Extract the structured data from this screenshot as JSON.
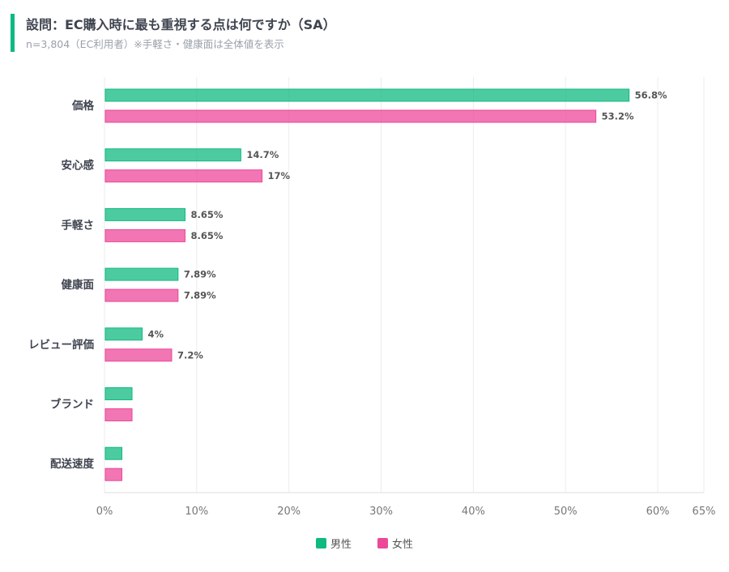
{
  "header": {
    "title": "設問：EC購入時に最も重視する点は何ですか（SA）",
    "subtitle": "n=3,804（EC利用者）※手軽さ・健康面は全体値を表示"
  },
  "chart_data": {
    "type": "bar",
    "orientation": "horizontal",
    "categories": [
      "価格",
      "安心感",
      "手軽さ",
      "健康面",
      "レビュー評価",
      "ブランド",
      "配送速度"
    ],
    "series": [
      {
        "name": "男性",
        "color": "#10b981",
        "values": [
          56.8,
          14.7,
          8.65,
          7.89,
          4,
          2.9,
          1.8
        ],
        "labels": [
          "56.8%",
          "14.7%",
          "8.65%",
          "7.89%",
          "4%",
          "",
          ""
        ]
      },
      {
        "name": "女性",
        "color": "#ec4899",
        "values": [
          53.2,
          17,
          8.65,
          7.89,
          7.2,
          2.9,
          1.8
        ],
        "labels": [
          "53.2%",
          "17%",
          "8.65%",
          "7.89%",
          "7.2%",
          "",
          ""
        ]
      }
    ],
    "xticks": [
      0,
      10,
      20,
      30,
      40,
      50,
      60,
      65
    ],
    "xtick_labels": [
      "0%",
      "10%",
      "20%",
      "30%",
      "40%",
      "50%",
      "60%",
      "65%"
    ],
    "xlim": [
      0,
      65
    ],
    "grid": true,
    "legend": "bottom"
  }
}
